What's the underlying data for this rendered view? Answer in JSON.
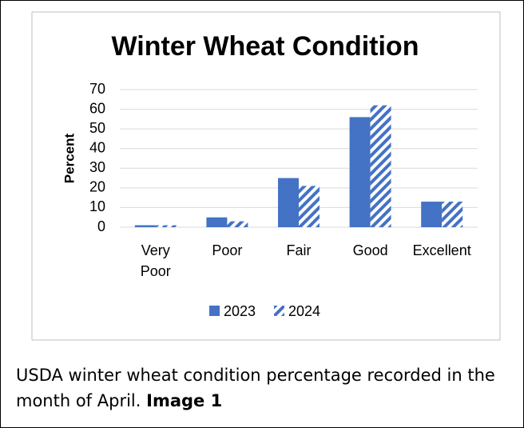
{
  "chart_data": {
    "type": "bar",
    "title": "Winter Wheat Condition",
    "y_label": "Percent",
    "categories": [
      "Very Poor",
      "Poor",
      "Fair",
      "Good",
      "Excellent"
    ],
    "series": [
      {
        "name": "2023",
        "color": "#4472c4",
        "fill": "solid",
        "values": [
          1,
          5,
          25,
          56,
          13
        ]
      },
      {
        "name": "2024",
        "color": "#4472c4",
        "fill": "striped",
        "values": [
          1,
          3,
          21,
          62,
          13
        ]
      }
    ],
    "ylim": [
      0,
      70
    ],
    "yticks": [
      0,
      10,
      20,
      30,
      40,
      50,
      60,
      70
    ],
    "grid": true,
    "legend": "bottom"
  },
  "caption": {
    "text": "USDA winter wheat condition percentage recorded in the month of April.",
    "label": "Image 1"
  }
}
